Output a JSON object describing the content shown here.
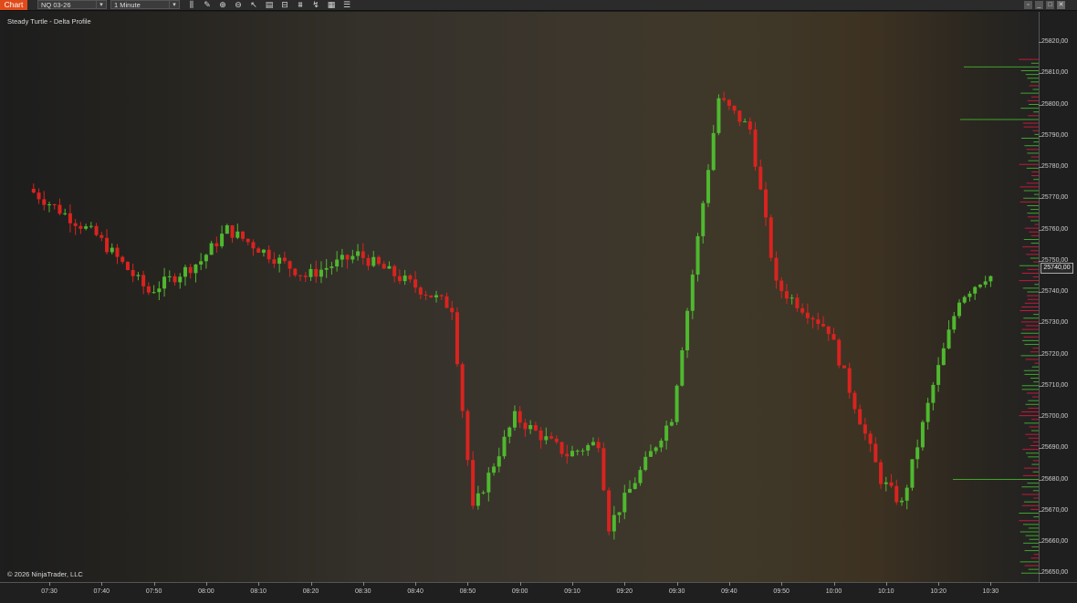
{
  "toolbar": {
    "tab_label": "Chart",
    "instrument": "NQ 03-26",
    "interval": "1 Minute",
    "icons": [
      "bars-icon",
      "draw-pencil-icon",
      "zoom-in-icon",
      "zoom-out-icon",
      "cursor-icon",
      "properties-icon",
      "data-box-icon",
      "strategies-icon",
      "indicators-icon",
      "templates-icon",
      "list-icon"
    ]
  },
  "chart": {
    "title": "Steady Turtle - Delta Profile",
    "copyright": "© 2026 NinjaTrader, LLC",
    "current_price": "25740,00",
    "colors": {
      "up": "#4fb82f",
      "down": "#d9231f",
      "profile_up": "#3fa52b",
      "profile_down": "#c01a3a"
    }
  },
  "price_axis": [
    "25820,00",
    "25810,00",
    "25800,00",
    "25790,00",
    "25780,00",
    "25770,00",
    "25760,00",
    "25750,00",
    "25740,00",
    "25730,00",
    "25720,00",
    "25710,00",
    "25700,00",
    "25690,00",
    "25680,00",
    "25670,00",
    "25660,00",
    "25650,00"
  ],
  "time_axis": [
    "07:30",
    "07:40",
    "07:50",
    "08:00",
    "08:10",
    "08:20",
    "08:30",
    "08:40",
    "08:50",
    "09:00",
    "09:10",
    "09:20",
    "09:30",
    "09:40",
    "09:50",
    "10:00",
    "10:10",
    "10:20",
    "10:30"
  ],
  "chart_data": {
    "type": "candlestick",
    "ylim": [
      25648,
      25826
    ],
    "y_label_ticks": [
      25820,
      25810,
      25800,
      25790,
      25780,
      25770,
      25760,
      25750,
      25740,
      25730,
      25720,
      25710,
      25700,
      25690,
      25680,
      25670,
      25660,
      25650
    ],
    "key_points": [
      {
        "t": "07:27",
        "p": 25773
      },
      {
        "t": "07:40",
        "p": 25758
      },
      {
        "t": "07:50",
        "p": 25740
      },
      {
        "t": "08:00",
        "p": 25750
      },
      {
        "t": "08:05",
        "p": 25760
      },
      {
        "t": "08:20",
        "p": 25745
      },
      {
        "t": "08:30",
        "p": 25752
      },
      {
        "t": "08:45",
        "p": 25738
      },
      {
        "t": "08:48",
        "p": 25735
      },
      {
        "t": "08:52",
        "p": 25670
      },
      {
        "t": "09:00",
        "p": 25700
      },
      {
        "t": "09:10",
        "p": 25688
      },
      {
        "t": "09:16",
        "p": 25692
      },
      {
        "t": "09:18",
        "p": 25665
      },
      {
        "t": "09:30",
        "p": 25700
      },
      {
        "t": "09:37",
        "p": 25780
      },
      {
        "t": "09:39",
        "p": 25802
      },
      {
        "t": "09:45",
        "p": 25792
      },
      {
        "t": "09:50",
        "p": 25742
      },
      {
        "t": "10:00",
        "p": 25728
      },
      {
        "t": "10:10",
        "p": 25680
      },
      {
        "t": "10:14",
        "p": 25672
      },
      {
        "t": "10:20",
        "p": 25710
      },
      {
        "t": "10:25",
        "p": 25738
      },
      {
        "t": "10:30",
        "p": 25745
      }
    ]
  }
}
